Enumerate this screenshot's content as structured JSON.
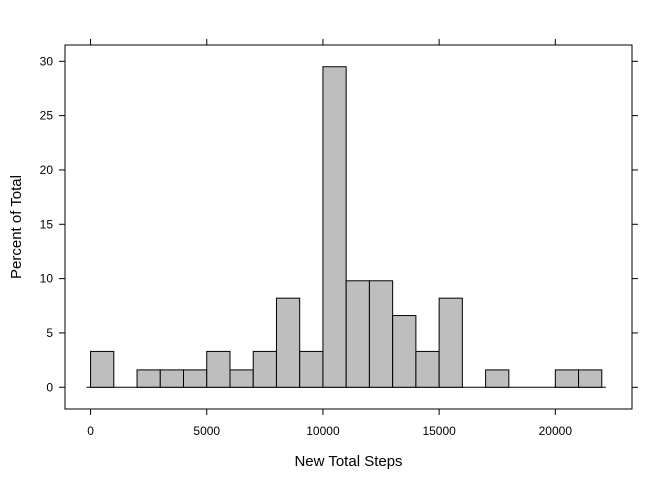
{
  "chart_data": {
    "type": "bar",
    "subtype": "histogram",
    "title": "",
    "xlabel": "New Total Steps",
    "ylabel": "Percent of Total",
    "xlim": [
      -1100,
      23300
    ],
    "ylim": [
      -2.0,
      31.5
    ],
    "x_ticks": [
      0,
      5000,
      10000,
      15000,
      20000
    ],
    "y_ticks": [
      0,
      5,
      10,
      15,
      20,
      25,
      30
    ],
    "bin_width": 1000,
    "bins": [
      {
        "start": 0,
        "end": 1000,
        "value": 3.3
      },
      {
        "start": 1000,
        "end": 2000,
        "value": 0
      },
      {
        "start": 2000,
        "end": 3000,
        "value": 1.6
      },
      {
        "start": 3000,
        "end": 4000,
        "value": 1.6
      },
      {
        "start": 4000,
        "end": 5000,
        "value": 1.6
      },
      {
        "start": 5000,
        "end": 6000,
        "value": 3.3
      },
      {
        "start": 6000,
        "end": 7000,
        "value": 1.6
      },
      {
        "start": 7000,
        "end": 8000,
        "value": 3.3
      },
      {
        "start": 8000,
        "end": 9000,
        "value": 8.2
      },
      {
        "start": 9000,
        "end": 10000,
        "value": 3.3
      },
      {
        "start": 10000,
        "end": 11000,
        "value": 29.5
      },
      {
        "start": 11000,
        "end": 12000,
        "value": 9.8
      },
      {
        "start": 12000,
        "end": 13000,
        "value": 9.8
      },
      {
        "start": 13000,
        "end": 14000,
        "value": 6.6
      },
      {
        "start": 14000,
        "end": 15000,
        "value": 3.3
      },
      {
        "start": 15000,
        "end": 16000,
        "value": 8.2
      },
      {
        "start": 16000,
        "end": 17000,
        "value": 0
      },
      {
        "start": 17000,
        "end": 18000,
        "value": 1.6
      },
      {
        "start": 18000,
        "end": 19000,
        "value": 0
      },
      {
        "start": 19000,
        "end": 20000,
        "value": 0
      },
      {
        "start": 20000,
        "end": 21000,
        "value": 1.6
      },
      {
        "start": 21000,
        "end": 22000,
        "value": 1.6
      }
    ],
    "colors": {
      "bar_fill": "#bebebe",
      "bar_stroke": "#000000",
      "frame": "#000000"
    },
    "grid": false,
    "legend": "none"
  }
}
